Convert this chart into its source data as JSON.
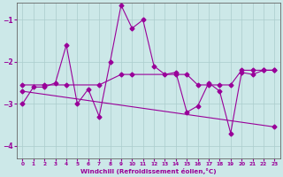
{
  "xlabel": "Windchill (Refroidissement éolien,°C)",
  "background_color": "#cce8e8",
  "grid_color": "#aacccc",
  "line_color": "#990099",
  "xlim": [
    -0.5,
    23.5
  ],
  "ylim": [
    -4.3,
    -0.6
  ],
  "yticks": [
    -4,
    -3,
    -2,
    -1
  ],
  "xticks": [
    0,
    1,
    2,
    3,
    4,
    5,
    6,
    7,
    8,
    9,
    10,
    11,
    12,
    13,
    14,
    15,
    16,
    17,
    18,
    19,
    20,
    21,
    22,
    23
  ],
  "series1_x": [
    0,
    1,
    2,
    3,
    4,
    5,
    6,
    7,
    8,
    9,
    10,
    11,
    12,
    13,
    14,
    15,
    16,
    17,
    18,
    19,
    20,
    21,
    22,
    23
  ],
  "series1_y": [
    -3.0,
    -2.6,
    -2.6,
    -2.5,
    -1.6,
    -3.0,
    -2.65,
    -3.3,
    -2.0,
    -0.65,
    -1.2,
    -1.0,
    -2.1,
    -2.3,
    -2.25,
    -3.2,
    -3.05,
    -2.5,
    -2.7,
    -3.7,
    -2.25,
    -2.3,
    -2.2,
    -2.2
  ],
  "series2_x": [
    0,
    2,
    4,
    7,
    9,
    10,
    14,
    15,
    16,
    17,
    18,
    19,
    20,
    21,
    22,
    23
  ],
  "series2_y": [
    -2.55,
    -2.55,
    -2.55,
    -2.55,
    -2.3,
    -2.3,
    -2.3,
    -2.3,
    -2.55,
    -2.55,
    -2.55,
    -2.55,
    -2.2,
    -2.2,
    -2.2,
    -2.2
  ],
  "series3_x": [
    0,
    23
  ],
  "series3_y": [
    -2.7,
    -3.55
  ],
  "marker": "D",
  "markersize": 2.5,
  "linewidth": 0.8
}
